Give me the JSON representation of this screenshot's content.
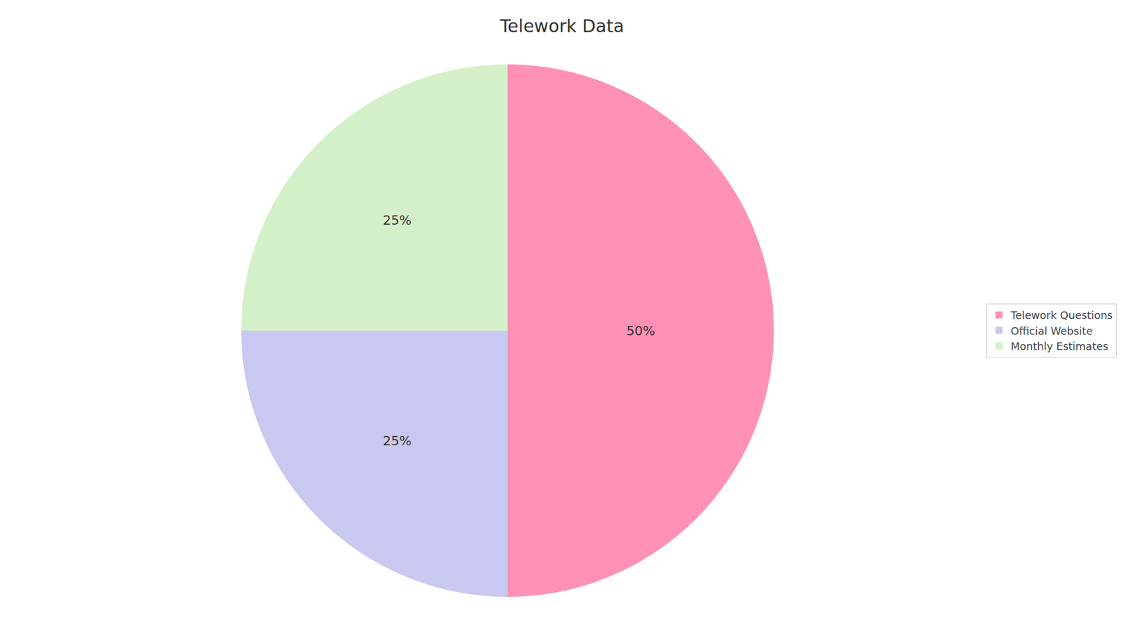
{
  "chart_data": {
    "type": "pie",
    "title": "Telework Data",
    "categories": [
      "Telework Questions",
      "Official Website",
      "Monthly Estimates"
    ],
    "values": [
      50,
      25,
      25
    ],
    "value_labels": [
      "50%",
      "25%",
      "25%"
    ],
    "data_labels": true,
    "colors": [
      "#FF91B4",
      "#C8C8F0",
      "#D4F0C8"
    ],
    "legend": "right"
  }
}
